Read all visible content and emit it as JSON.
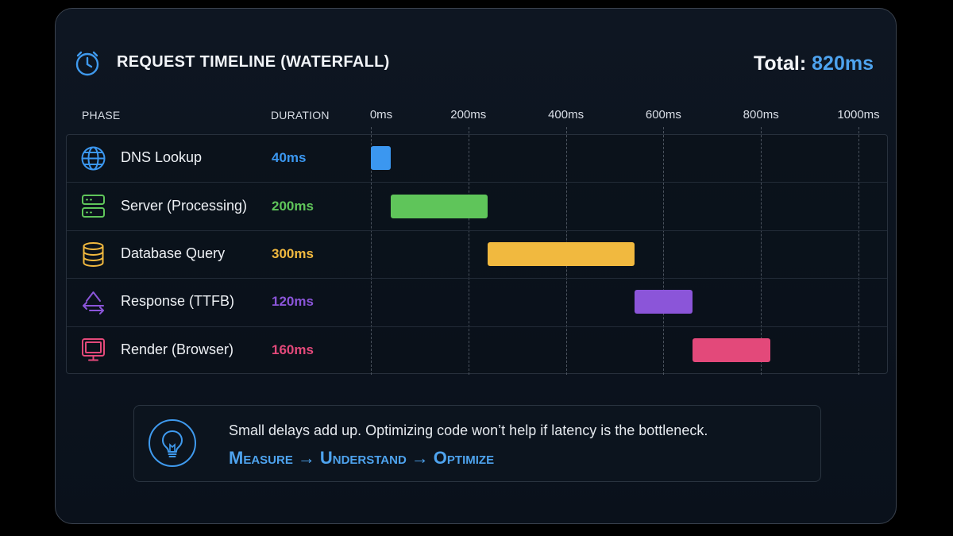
{
  "header": {
    "title": "REQUEST TIMELINE (WATERFALL)",
    "total_label": "Total:",
    "total_value": "820ms"
  },
  "columns": {
    "phase": "PHASE",
    "duration": "DURATION"
  },
  "chart_data": {
    "type": "bar",
    "subtype": "waterfall-gantt",
    "title": "REQUEST TIMELINE (WATERFALL)",
    "x_unit": "ms",
    "xlim": [
      0,
      1000
    ],
    "ticks": [
      0,
      200,
      400,
      600,
      800,
      1000
    ],
    "tick_labels": [
      "0ms",
      "200ms",
      "400ms",
      "600ms",
      "800ms",
      "1000ms"
    ],
    "grid": true,
    "phases": [
      {
        "name": "DNS Lookup",
        "duration_label": "40ms",
        "start": 0,
        "duration": 40,
        "color": "#3b97f0",
        "icon": "globe-icon"
      },
      {
        "name": "Server (Processing)",
        "duration_label": "200ms",
        "start": 40,
        "duration": 200,
        "color": "#5fc55a",
        "icon": "server-icon"
      },
      {
        "name": "Database Query",
        "duration_label": "300ms",
        "start": 240,
        "duration": 300,
        "color": "#f1b93f",
        "icon": "database-icon"
      },
      {
        "name": "Response (TTFB)",
        "duration_label": "120ms",
        "start": 540,
        "duration": 120,
        "color": "#8b55d9",
        "icon": "response-arrows-icon"
      },
      {
        "name": "Render (Browser)",
        "duration_label": "160ms",
        "start": 660,
        "duration": 160,
        "color": "#e3497a",
        "icon": "monitor-icon"
      }
    ]
  },
  "tip": {
    "text": "Small delays add up. Optimizing code won’t help if latency is the bottleneck.",
    "step1": "Measure",
    "arrow": "→",
    "step2": "Understand",
    "step3": "Optimize",
    "icon": "lightbulb-icon"
  },
  "colors": {
    "accent": "#4ea3ee",
    "background": "#0b121c"
  }
}
